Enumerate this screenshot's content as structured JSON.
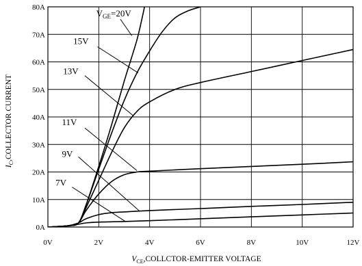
{
  "chart_data": {
    "type": "line",
    "title": "",
    "xlabel": "VCE,COLLCTOR-EMITTER VOLTAGE",
    "xlabel_main": "V",
    "xlabel_sub": "CE",
    "xlabel_rest": ",COLLCTOR-EMITTER VOLTAGE",
    "ylabel": "IC,COLLECTOR CURRENT",
    "ylabel_main": "I",
    "ylabel_sub": "C",
    "ylabel_rest": ",COLLECTOR CURRENT",
    "xlim": [
      0,
      12
    ],
    "ylim": [
      0,
      80
    ],
    "xticks": [
      0,
      2,
      4,
      6,
      8,
      10,
      12
    ],
    "xtick_labels": [
      "0V",
      "2V",
      "4V",
      "6V",
      "8V",
      "10V",
      "12V"
    ],
    "yticks": [
      0,
      10,
      20,
      30,
      40,
      50,
      60,
      70,
      80
    ],
    "ytick_labels": [
      "0A",
      "10A",
      "20A",
      "30A",
      "40A",
      "50A",
      "60A",
      "70A",
      "80A"
    ],
    "grid": true,
    "series": [
      {
        "name": "VGE=20V",
        "label_main": "V",
        "label_sub": "GE",
        "label_rest": "=20V",
        "points": [
          [
            0,
            0
          ],
          [
            0.8,
            0.5
          ],
          [
            1.2,
            1.5
          ],
          [
            1.5,
            8
          ],
          [
            2.0,
            22
          ],
          [
            2.5,
            37
          ],
          [
            3.0,
            53
          ],
          [
            3.5,
            68
          ],
          [
            3.8,
            80
          ]
        ]
      },
      {
        "name": "15V",
        "label_main": "15V",
        "points": [
          [
            0,
            0
          ],
          [
            0.8,
            0.5
          ],
          [
            1.2,
            1.5
          ],
          [
            1.5,
            8
          ],
          [
            2.0,
            21
          ],
          [
            2.5,
            34
          ],
          [
            3.0,
            46
          ],
          [
            3.5,
            56
          ],
          [
            4.0,
            64
          ],
          [
            4.5,
            71
          ],
          [
            5.0,
            76
          ],
          [
            5.5,
            78.5
          ],
          [
            6.0,
            80
          ]
        ]
      },
      {
        "name": "13V",
        "label_main": "13V",
        "points": [
          [
            0,
            0
          ],
          [
            0.8,
            0.5
          ],
          [
            1.2,
            1.5
          ],
          [
            1.5,
            7
          ],
          [
            2.0,
            17
          ],
          [
            2.5,
            27
          ],
          [
            3.0,
            36
          ],
          [
            3.5,
            42
          ],
          [
            4.0,
            45.5
          ],
          [
            5.0,
            50
          ],
          [
            6.0,
            52.5
          ],
          [
            8.0,
            56.5
          ],
          [
            10.0,
            60.5
          ],
          [
            12.0,
            64.5
          ]
        ]
      },
      {
        "name": "11V",
        "label_main": "11V",
        "points": [
          [
            0,
            0
          ],
          [
            0.8,
            0.5
          ],
          [
            1.2,
            1.5
          ],
          [
            1.5,
            6
          ],
          [
            2.0,
            12
          ],
          [
            2.5,
            16.5
          ],
          [
            3.0,
            19
          ],
          [
            3.5,
            20
          ],
          [
            4.0,
            20.3
          ],
          [
            6.0,
            21.2
          ],
          [
            8.0,
            22
          ],
          [
            10.0,
            22.8
          ],
          [
            12.0,
            23.7
          ]
        ]
      },
      {
        "name": "9V",
        "label_main": "9V",
        "points": [
          [
            0,
            0
          ],
          [
            0.8,
            0.5
          ],
          [
            1.2,
            1.5
          ],
          [
            1.5,
            3
          ],
          [
            2.0,
            4.5
          ],
          [
            2.5,
            5.2
          ],
          [
            3.0,
            5.5
          ],
          [
            4.0,
            6
          ],
          [
            6.0,
            6.7
          ],
          [
            8.0,
            7.5
          ],
          [
            10.0,
            8.2
          ],
          [
            12.0,
            9
          ]
        ]
      },
      {
        "name": "7V",
        "label_main": "7V",
        "points": [
          [
            0,
            0
          ],
          [
            0.8,
            0.4
          ],
          [
            1.2,
            1.0
          ],
          [
            1.5,
            1.5
          ],
          [
            2.0,
            1.8
          ],
          [
            3.0,
            2.0
          ],
          [
            4.0,
            2.3
          ],
          [
            6.0,
            3.0
          ],
          [
            8.0,
            3.7
          ],
          [
            10.0,
            4.4
          ],
          [
            12.0,
            5.1
          ]
        ]
      }
    ],
    "annotations": [
      {
        "series": "VGE=20V",
        "text_x": 1.9,
        "text_y": 76.5,
        "leader_from": [
          2.85,
          75.5
        ],
        "leader_to": [
          3.3,
          69.5
        ]
      },
      {
        "series": "15V",
        "text_x": 1.0,
        "text_y": 66.5,
        "leader_from": [
          1.95,
          65.5
        ],
        "leader_to": [
          3.55,
          56
        ]
      },
      {
        "series": "13V",
        "text_x": 0.6,
        "text_y": 55.5,
        "leader_from": [
          1.45,
          55
        ],
        "leader_to": [
          3.35,
          40.5
        ]
      },
      {
        "series": "11V",
        "text_x": 0.55,
        "text_y": 37,
        "leader_from": [
          1.45,
          36
        ],
        "leader_to": [
          3.5,
          20.5
        ]
      },
      {
        "series": "9V",
        "text_x": 0.55,
        "text_y": 25.5,
        "leader_from": [
          1.2,
          25.5
        ],
        "leader_to": [
          3.6,
          5.8
        ]
      },
      {
        "series": "7V",
        "text_x": 0.3,
        "text_y": 15,
        "leader_from": [
          0.95,
          14.5
        ],
        "leader_to": [
          3.05,
          2.0
        ]
      }
    ]
  }
}
